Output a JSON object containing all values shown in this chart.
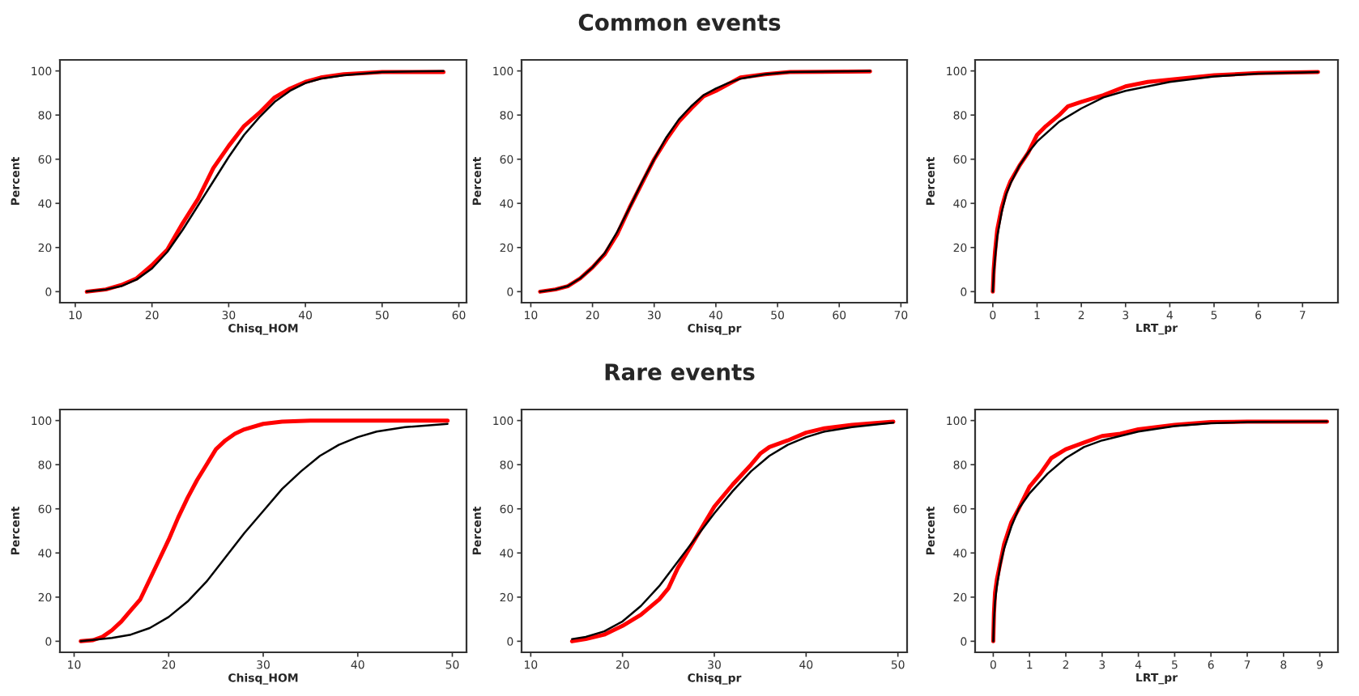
{
  "chart_data": [
    {
      "type": "line",
      "xlabel": "Chisq_HOM",
      "ylabel": "Percent",
      "xlim": [
        8,
        61
      ],
      "xticks": [
        10,
        20,
        30,
        40,
        50,
        60
      ],
      "ylim": [
        -5,
        105
      ],
      "yticks": [
        0,
        20,
        40,
        60,
        80,
        100
      ],
      "grid": false,
      "legend": false,
      "series": [
        {
          "color": "#ff0000",
          "x": [
            11.5,
            14,
            16,
            18,
            20,
            22,
            24,
            26,
            28,
            30,
            32,
            34,
            36,
            38,
            40,
            42,
            45,
            50,
            58
          ],
          "values": [
            0,
            1,
            3,
            6,
            12,
            19,
            31,
            42,
            56,
            66,
            75,
            81,
            88,
            92,
            95,
            97,
            98.5,
            99.5,
            99.5
          ]
        },
        {
          "color": "#000000",
          "x": [
            11.5,
            14,
            16,
            18,
            20,
            22,
            24,
            26,
            28,
            30,
            32,
            34,
            36,
            38,
            40,
            42,
            45,
            50,
            58
          ],
          "values": [
            0,
            1,
            2.5,
            5.5,
            10.5,
            18,
            28,
            39,
            50,
            61,
            71,
            79,
            86,
            91,
            94.5,
            96.5,
            98,
            99.5,
            100
          ]
        }
      ]
    },
    {
      "type": "line",
      "title": "Common events",
      "xlabel": "Chisq_pr",
      "ylabel": "Percent",
      "xlim": [
        8.5,
        71
      ],
      "xticks": [
        10,
        20,
        30,
        40,
        50,
        60,
        70
      ],
      "ylim": [
        -5,
        105
      ],
      "yticks": [
        0,
        20,
        40,
        60,
        80,
        100
      ],
      "grid": false,
      "legend": false,
      "series": [
        {
          "color": "#ff0000",
          "x": [
            11.5,
            14,
            16,
            18,
            20,
            22,
            24,
            26,
            28,
            30,
            32,
            34,
            36,
            38,
            40,
            42,
            44,
            48,
            52,
            65
          ],
          "values": [
            0,
            1,
            2.5,
            6,
            11,
            17,
            26,
            38,
            49,
            60,
            69,
            77,
            83,
            88.5,
            91,
            94,
            97,
            98.5,
            99.5,
            99.8
          ]
        },
        {
          "color": "#000000",
          "x": [
            11.5,
            14,
            16,
            18,
            20,
            22,
            24,
            26,
            28,
            30,
            32,
            34,
            36,
            38,
            40,
            42,
            44,
            48,
            52,
            65
          ],
          "values": [
            0,
            1,
            2.5,
            6,
            11,
            17.5,
            27,
            38,
            49.5,
            60,
            70,
            78,
            84,
            89,
            92,
            94.5,
            96.5,
            98.5,
            99.5,
            100
          ]
        }
      ]
    },
    {
      "type": "line",
      "xlabel": "LRT_pr",
      "ylabel": "Percent",
      "xlim": [
        -0.4,
        7.8
      ],
      "xticks": [
        0,
        1,
        2,
        3,
        4,
        5,
        6,
        7
      ],
      "ylim": [
        -5,
        105
      ],
      "yticks": [
        0,
        20,
        40,
        60,
        80,
        100
      ],
      "grid": false,
      "legend": false,
      "series": [
        {
          "color": "#ff0000",
          "x": [
            0,
            0.02,
            0.05,
            0.1,
            0.2,
            0.3,
            0.4,
            0.6,
            0.8,
            1,
            1.2,
            1.5,
            1.7,
            2,
            2.5,
            3,
            3.5,
            4,
            5,
            6,
            7.35
          ],
          "values": [
            0,
            10,
            18,
            28,
            38,
            45,
            50,
            57,
            63,
            71,
            75,
            80,
            84,
            86,
            89,
            93,
            95,
            96,
            98,
            99,
            99.5
          ]
        },
        {
          "color": "#000000",
          "x": [
            0,
            0.02,
            0.05,
            0.1,
            0.2,
            0.3,
            0.4,
            0.6,
            0.8,
            1,
            1.5,
            2,
            2.5,
            3,
            4,
            5,
            6,
            7.35
          ],
          "values": [
            0,
            8,
            15,
            25,
            36,
            44,
            49,
            57,
            63,
            68,
            77,
            83,
            88,
            91,
            95,
            97.5,
            98.8,
            99.5
          ]
        }
      ]
    },
    {
      "type": "line",
      "xlabel": "Chisq_HOM",
      "ylabel": "Percent",
      "xlim": [
        8.5,
        51.5
      ],
      "xticks": [
        10,
        20,
        30,
        40,
        50
      ],
      "ylim": [
        -5,
        105
      ],
      "yticks": [
        0,
        20,
        40,
        60,
        80,
        100
      ],
      "grid": false,
      "legend": false,
      "series": [
        {
          "color": "#ff0000",
          "x": [
            10.7,
            12,
            13,
            14,
            15,
            16,
            17,
            18,
            19,
            20,
            21,
            22,
            23,
            24,
            25,
            26,
            27,
            28,
            30,
            32,
            35,
            49.5
          ],
          "values": [
            0,
            0.5,
            2,
            5,
            9,
            14,
            19,
            28,
            37,
            46,
            56,
            65,
            73,
            80,
            87,
            91,
            94,
            96,
            98.5,
            99.5,
            100,
            100
          ]
        },
        {
          "color": "#000000",
          "x": [
            10.7,
            14,
            16,
            18,
            20,
            22,
            24,
            26,
            28,
            30,
            32,
            34,
            36,
            38,
            40,
            42,
            45,
            49.5
          ],
          "values": [
            0,
            1.5,
            3,
            6,
            11,
            18,
            27,
            38,
            49,
            59,
            69,
            77,
            84,
            89,
            92.5,
            95,
            97,
            98.5
          ]
        }
      ]
    },
    {
      "type": "line",
      "title": "Rare events",
      "xlabel": "Chisq_pr",
      "ylabel": "Percent",
      "xlim": [
        9,
        51
      ],
      "xticks": [
        10,
        20,
        30,
        40,
        50
      ],
      "ylim": [
        -5,
        105
      ],
      "yticks": [
        0,
        20,
        40,
        60,
        80,
        100
      ],
      "grid": false,
      "legend": false,
      "series": [
        {
          "color": "#ff0000",
          "x": [
            14.5,
            16,
            18,
            20,
            22,
            24,
            25,
            26,
            27,
            28,
            29,
            30,
            32,
            34,
            35,
            36,
            38,
            40,
            42,
            45,
            49.5
          ],
          "values": [
            0,
            1,
            3,
            7,
            12,
            19,
            24,
            33,
            40,
            47,
            54,
            61,
            71,
            80,
            85,
            88,
            91,
            94.5,
            96.5,
            98,
            99.5
          ]
        },
        {
          "color": "#000000",
          "x": [
            14.5,
            16,
            18,
            20,
            22,
            24,
            26,
            28,
            30,
            32,
            34,
            36,
            38,
            40,
            42,
            45,
            49.5
          ],
          "values": [
            1,
            2,
            4.5,
            9,
            16,
            25,
            36,
            47,
            58,
            68,
            77,
            84,
            89,
            92.5,
            95,
            97,
            99
          ]
        }
      ]
    },
    {
      "type": "line",
      "xlabel": "LRT_pr",
      "ylabel": "Percent",
      "xlim": [
        -0.5,
        9.5
      ],
      "xticks": [
        0,
        1,
        2,
        3,
        4,
        5,
        6,
        7,
        8,
        9
      ],
      "ylim": [
        -5,
        105
      ],
      "yticks": [
        0,
        20,
        40,
        60,
        80,
        100
      ],
      "grid": false,
      "legend": false,
      "series": [
        {
          "color": "#ff0000",
          "x": [
            0,
            0.02,
            0.05,
            0.1,
            0.2,
            0.3,
            0.5,
            0.7,
            1,
            1.3,
            1.6,
            2,
            2.5,
            3,
            3.5,
            4,
            5,
            6,
            7,
            9.2
          ],
          "values": [
            0,
            13,
            22,
            28,
            36,
            44,
            54,
            60,
            70,
            76,
            83,
            87,
            90,
            93,
            94,
            96,
            98,
            99.3,
            99.5,
            99.5
          ]
        },
        {
          "color": "#000000",
          "x": [
            0,
            0.02,
            0.05,
            0.1,
            0.2,
            0.3,
            0.5,
            0.7,
            1,
            1.5,
            2,
            2.5,
            3,
            4,
            5,
            6,
            7,
            9.2
          ],
          "values": [
            0,
            10,
            18,
            25,
            35,
            42,
            52,
            60,
            67,
            76,
            83,
            88,
            91,
            95,
            97.5,
            98.8,
            99.3,
            99.6
          ]
        }
      ]
    }
  ]
}
